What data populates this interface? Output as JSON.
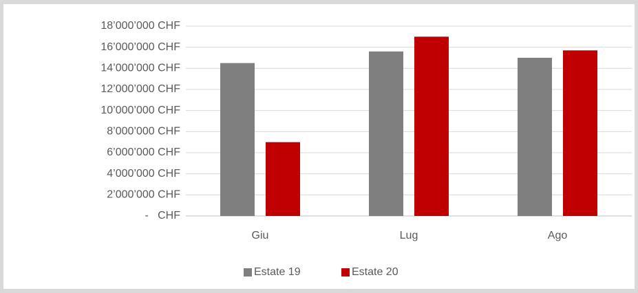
{
  "chart_data": {
    "type": "bar",
    "categories": [
      "Giu",
      "Lug",
      "Ago"
    ],
    "series": [
      {
        "name": "Estate 19",
        "color": "#7f7f7f",
        "values": [
          14500000,
          15600000,
          15000000
        ]
      },
      {
        "name": "Estate 20",
        "color": "#c00000",
        "values": [
          7000000,
          17000000,
          15700000
        ]
      }
    ],
    "ylim": [
      0,
      18000000
    ],
    "yticks": [
      {
        "value": 0,
        "label": "-   CHF"
      },
      {
        "value": 2000000,
        "label": "2’000’000 CHF"
      },
      {
        "value": 4000000,
        "label": "4’000’000 CHF"
      },
      {
        "value": 6000000,
        "label": "6’000’000 CHF"
      },
      {
        "value": 8000000,
        "label": "8’000’000 CHF"
      },
      {
        "value": 10000000,
        "label": "10’000’000 CHF"
      },
      {
        "value": 12000000,
        "label": "12’000’000 CHF"
      },
      {
        "value": 14000000,
        "label": "14’000’000 CHF"
      },
      {
        "value": 16000000,
        "label": "16’000’000 CHF"
      },
      {
        "value": 18000000,
        "label": "18’000’000 CHF"
      }
    ],
    "grid": true,
    "legend": "bottom"
  }
}
